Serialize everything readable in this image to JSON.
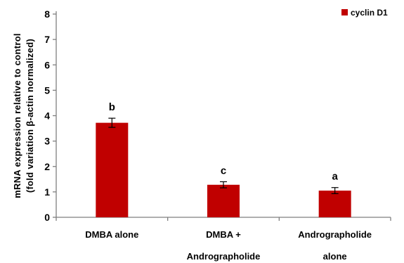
{
  "chart_data": {
    "type": "bar",
    "title": "",
    "ylabel": "mRNA expression relative to control",
    "ylabel_line2": "(fold variation β-actin normalized)",
    "xlabel": "",
    "ylim": [
      0,
      8
    ],
    "yticks": [
      0,
      1,
      2,
      3,
      4,
      5,
      6,
      7,
      8
    ],
    "categories": [
      [
        "DMBA alone"
      ],
      [
        "DMBA +",
        "Andrographolide"
      ],
      [
        "Andrographolide",
        "alone"
      ]
    ],
    "series": [
      {
        "name": "cyclin D1",
        "color": "#c00000",
        "values": [
          3.72,
          1.28,
          1.05
        ],
        "errors": [
          0.18,
          0.12,
          0.12
        ],
        "significance": [
          "b",
          "c",
          "a"
        ]
      }
    ],
    "legend_position": "top-right",
    "grid": false
  }
}
